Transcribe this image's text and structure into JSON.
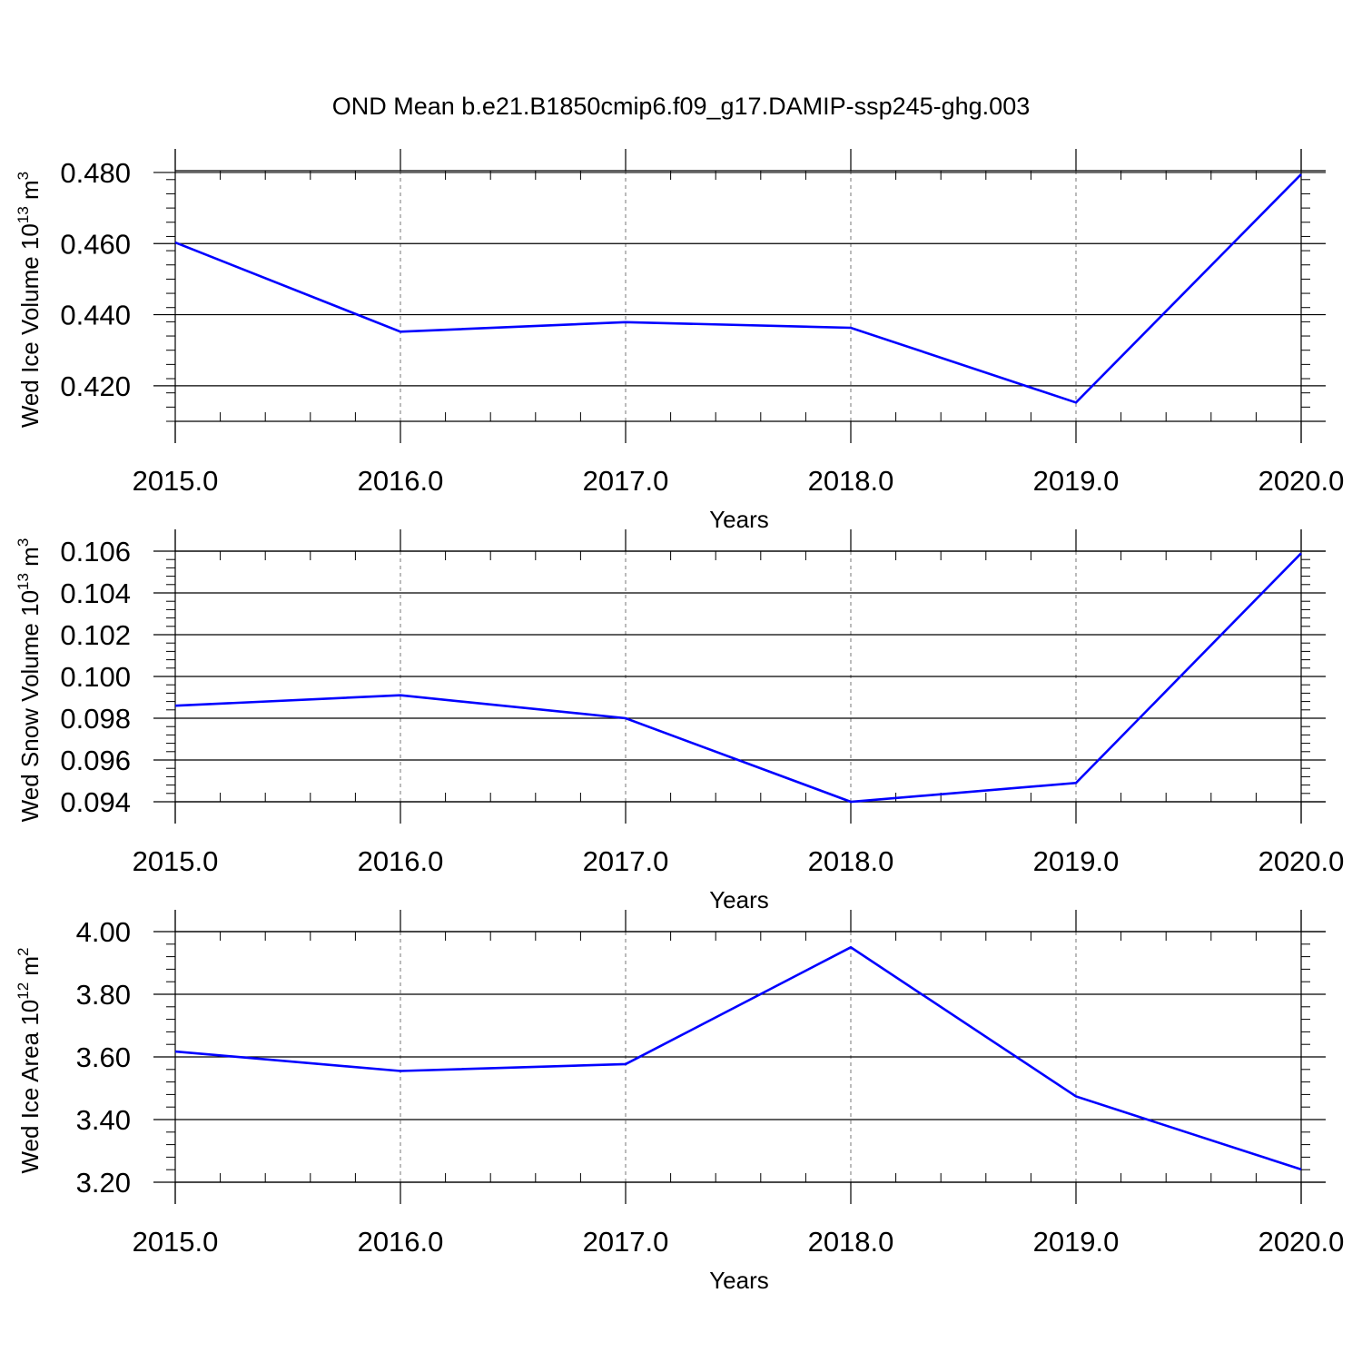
{
  "title": "OND Mean b.e21.B1850cmip6.f09_g17.DAMIP-ssp245-ghg.003",
  "chart_data": [
    {
      "type": "line",
      "xlabel": "Years",
      "ylabel": {
        "text": "Wed Ice Volume 10",
        "exp": "13",
        "unit": " m",
        "unit_exp": "3"
      },
      "x": [
        2015,
        2016,
        2017,
        2018,
        2019,
        2020
      ],
      "x_ticks": [
        "2015.0",
        "2016.0",
        "2017.0",
        "2018.0",
        "2019.0",
        "2020.0"
      ],
      "xlim": [
        2015,
        2020.1
      ],
      "ylim": [
        0.41,
        0.4805
      ],
      "y_ticks": [
        "0.420",
        "0.440",
        "0.460",
        "0.480"
      ],
      "y_tick_values": [
        0.42,
        0.44,
        0.46,
        0.48
      ],
      "series": [
        {
          "values": [
            0.4603,
            0.4352,
            0.4379,
            0.4363,
            0.4153,
            0.4795
          ],
          "color": "#0000ff"
        }
      ],
      "grid": "vertical dashed at major x ticks"
    },
    {
      "type": "line",
      "xlabel": "Years",
      "ylabel": {
        "text": "Wed Snow Volume 10",
        "exp": "13",
        "unit": " m",
        "unit_exp": "3"
      },
      "x": [
        2015,
        2016,
        2017,
        2018,
        2019,
        2020
      ],
      "x_ticks": [
        "2015.0",
        "2016.0",
        "2017.0",
        "2018.0",
        "2019.0",
        "2020.0"
      ],
      "xlim": [
        2015,
        2020.1
      ],
      "ylim": [
        0.094,
        0.106
      ],
      "y_ticks": [
        "0.094",
        "0.096",
        "0.098",
        "0.100",
        "0.102",
        "0.104",
        "0.106"
      ],
      "y_tick_values": [
        0.094,
        0.096,
        0.098,
        0.1,
        0.102,
        0.104,
        0.106
      ],
      "series": [
        {
          "values": [
            0.0986,
            0.0991,
            0.098,
            0.094,
            0.0949,
            0.1059
          ],
          "color": "#0000ff"
        }
      ],
      "grid": "vertical dashed at major x ticks"
    },
    {
      "type": "line",
      "xlabel": "Years",
      "ylabel": {
        "text": "Wed Ice Area 10",
        "exp": "12",
        "unit": " m",
        "unit_exp": "2"
      },
      "x": [
        2015,
        2016,
        2017,
        2018,
        2019,
        2020
      ],
      "x_ticks": [
        "2015.0",
        "2016.0",
        "2017.0",
        "2018.0",
        "2019.0",
        "2020.0"
      ],
      "xlim": [
        2015,
        2020.1
      ],
      "ylim": [
        3.2,
        4.0
      ],
      "y_ticks": [
        "3.20",
        "3.40",
        "3.60",
        "3.80",
        "4.00"
      ],
      "y_tick_values": [
        3.2,
        3.4,
        3.6,
        3.8,
        4.0
      ],
      "series": [
        {
          "values": [
            3.617,
            3.555,
            3.577,
            3.95,
            3.474,
            3.241
          ],
          "color": "#0000ff"
        }
      ],
      "grid": "vertical dashed at major x ticks"
    }
  ]
}
